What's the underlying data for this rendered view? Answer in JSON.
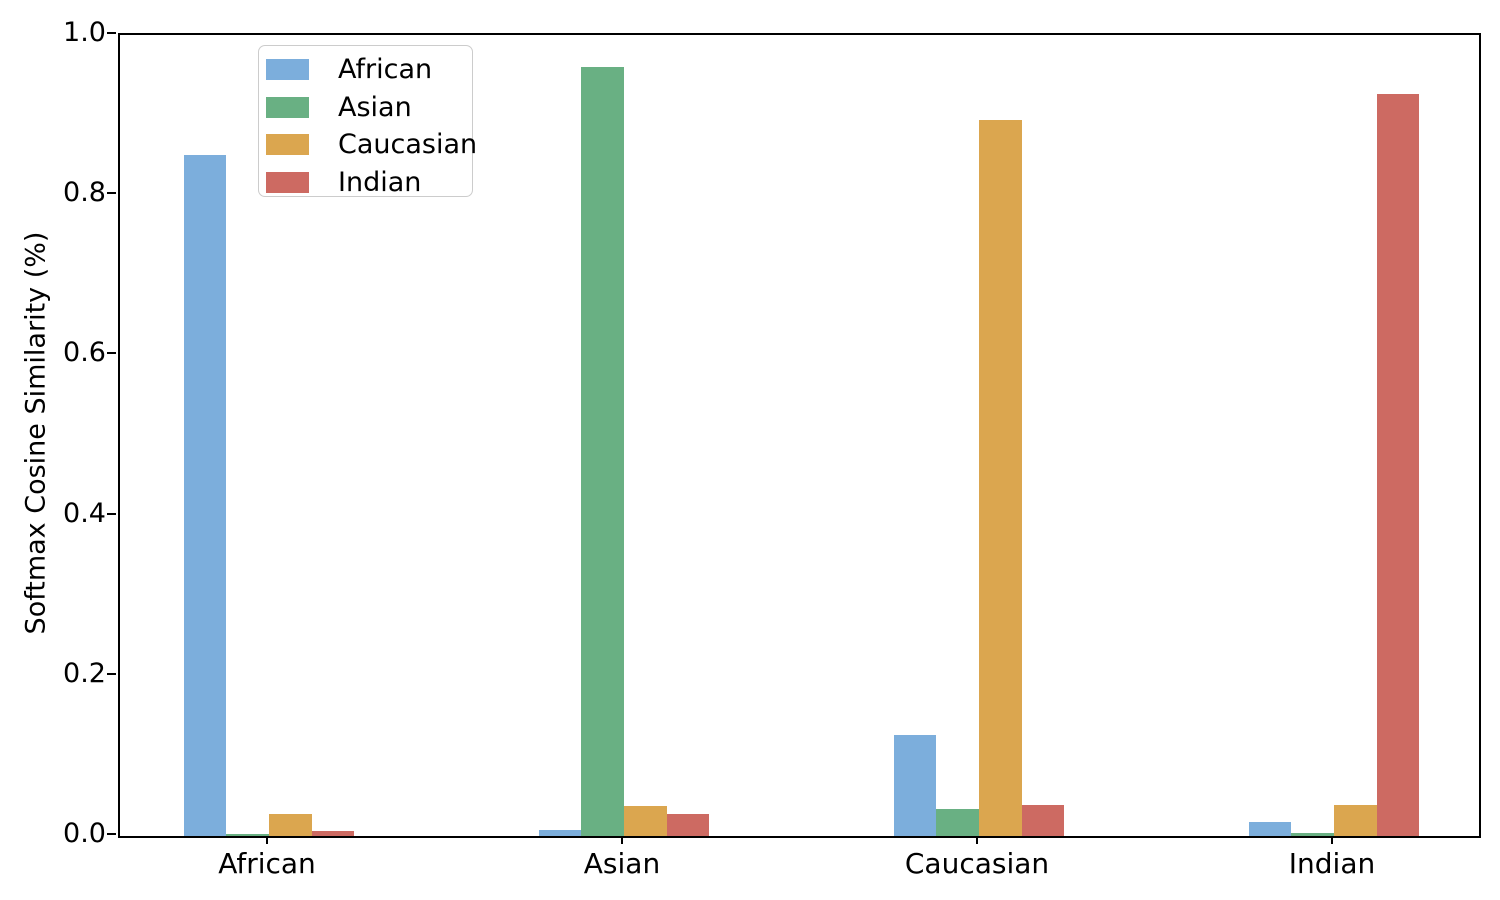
{
  "chart_data": {
    "type": "bar",
    "title": "",
    "xlabel": "",
    "ylabel": "Softmax Cosine Similarity (%)",
    "categories": [
      "African",
      "Asian",
      "Caucasian",
      "Indian"
    ],
    "series": [
      {
        "name": "African",
        "color": "#7CAEDC",
        "values": [
          0.85,
          0.007,
          0.126,
          0.017
        ]
      },
      {
        "name": "Asian",
        "color": "#69B083",
        "values": [
          0.002,
          0.96,
          0.034,
          0.004
        ]
      },
      {
        "name": "Caucasian",
        "color": "#DBA64F",
        "values": [
          0.028,
          0.037,
          0.894,
          0.039
        ]
      },
      {
        "name": "Indian",
        "color": "#CD6A62",
        "values": [
          0.006,
          0.027,
          0.039,
          0.926
        ]
      }
    ],
    "ylim": [
      0.0,
      1.0
    ],
    "yticks": [
      "0.0",
      "0.2",
      "0.4",
      "0.6",
      "0.8",
      "1.0"
    ],
    "grid": false,
    "legend_position": "upper left",
    "background_color": "#ffffff",
    "axis_color": "#000000"
  }
}
